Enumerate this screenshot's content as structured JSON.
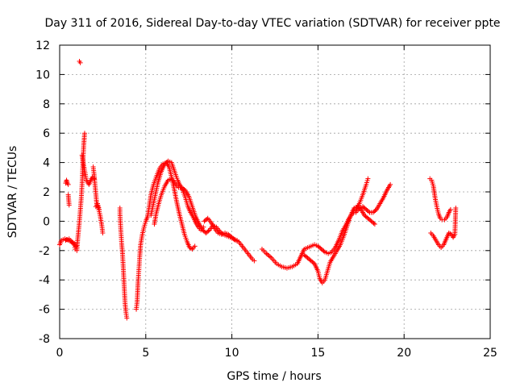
{
  "chart_data": {
    "type": "scatter",
    "title": "Day 311 of 2016, Sidereal Day-to-day VTEC variation (SDTVAR) for receiver ppte",
    "xlabel": "GPS time / hours",
    "ylabel": "SDTVAR / TECUs",
    "xlim": [
      0,
      25
    ],
    "ylim": [
      -8,
      12
    ],
    "xticks": [
      0,
      5,
      10,
      15,
      20,
      25
    ],
    "yticks": [
      -8,
      -6,
      -4,
      -2,
      0,
      2,
      4,
      6,
      8,
      10,
      12
    ],
    "grid": true,
    "marker": "+",
    "color": "#ff0000",
    "series": [
      {
        "name": "seg-a",
        "points": [
          [
            0,
            -1.6
          ],
          [
            0.1,
            -1.3
          ],
          [
            0.3,
            -1.2
          ],
          [
            0.5,
            -1.3
          ],
          [
            0.7,
            -1.4
          ],
          [
            0.85,
            -1.5
          ],
          [
            0.9,
            -1.9
          ],
          [
            1.0,
            -2.0
          ],
          [
            1.05,
            -1.2
          ],
          [
            1.15,
            0.0
          ],
          [
            1.25,
            1.5
          ],
          [
            1.3,
            2.5
          ],
          [
            1.35,
            4.0
          ],
          [
            1.4,
            5.2
          ],
          [
            1.45,
            6.0
          ]
        ]
      },
      {
        "name": "seg-a-low",
        "points": [
          [
            0.35,
            -1.3
          ],
          [
            0.55,
            -1.2
          ],
          [
            0.75,
            -1.5
          ],
          [
            0.95,
            -1.7
          ]
        ]
      },
      {
        "name": "seg-b",
        "points": [
          [
            0.35,
            2.6
          ],
          [
            0.4,
            2.8
          ],
          [
            0.45,
            2.6
          ],
          [
            0.5,
            2.5
          ]
        ]
      },
      {
        "name": "seg-b2",
        "points": [
          [
            0.5,
            1.8
          ],
          [
            0.55,
            1.1
          ]
        ]
      },
      {
        "name": "seg-c",
        "points": [
          [
            1.15,
            10.9
          ],
          [
            1.2,
            10.8
          ]
        ]
      },
      {
        "name": "seg-d",
        "points": [
          [
            1.3,
            4.5
          ],
          [
            1.4,
            3.8
          ],
          [
            1.55,
            2.8
          ],
          [
            1.7,
            2.5
          ],
          [
            1.8,
            2.8
          ],
          [
            1.9,
            3.0
          ],
          [
            2.0,
            2.9
          ]
        ]
      },
      {
        "name": "seg-e",
        "points": [
          [
            1.95,
            3.7
          ],
          [
            2.0,
            3.2
          ],
          [
            2.05,
            2.5
          ],
          [
            2.1,
            1.9
          ],
          [
            2.15,
            1.2
          ],
          [
            2.25,
            0.9
          ],
          [
            2.35,
            0.4
          ],
          [
            2.45,
            -0.3
          ],
          [
            2.5,
            -0.8
          ]
        ]
      },
      {
        "name": "seg-e2",
        "points": [
          [
            2.1,
            1.0
          ],
          [
            2.2,
            1.2
          ],
          [
            2.3,
            0.8
          ]
        ]
      },
      {
        "name": "seg-f",
        "points": [
          [
            3.5,
            0.9
          ],
          [
            3.5,
            0.5
          ],
          [
            3.55,
            -0.6
          ],
          [
            3.6,
            -1.5
          ],
          [
            3.65,
            -2.2
          ],
          [
            3.7,
            -3.3
          ],
          [
            3.75,
            -4.5
          ],
          [
            3.8,
            -5.6
          ],
          [
            3.85,
            -6.2
          ],
          [
            3.9,
            -6.6
          ]
        ]
      },
      {
        "name": "seg-g",
        "points": [
          [
            4.45,
            -6.0
          ],
          [
            4.5,
            -5.5
          ],
          [
            4.55,
            -4.2
          ],
          [
            4.6,
            -3.3
          ],
          [
            4.65,
            -2.4
          ],
          [
            4.7,
            -1.6
          ],
          [
            4.8,
            -0.9
          ],
          [
            4.9,
            -0.4
          ],
          [
            5.0,
            0.0
          ],
          [
            5.1,
            0.3
          ],
          [
            5.2,
            1.0
          ],
          [
            5.3,
            1.8
          ],
          [
            5.45,
            2.5
          ],
          [
            5.6,
            3.0
          ],
          [
            5.8,
            3.6
          ],
          [
            6.0,
            3.9
          ],
          [
            6.2,
            4.0
          ],
          [
            6.35,
            3.7
          ],
          [
            6.5,
            3.0
          ],
          [
            6.65,
            2.2
          ],
          [
            6.8,
            1.3
          ],
          [
            6.95,
            0.5
          ],
          [
            7.1,
            -0.2
          ],
          [
            7.25,
            -0.9
          ],
          [
            7.4,
            -1.4
          ],
          [
            7.55,
            -1.8
          ],
          [
            7.7,
            -1.9
          ],
          [
            7.85,
            -1.7
          ]
        ]
      },
      {
        "name": "seg-h",
        "points": [
          [
            5.3,
            0.4
          ],
          [
            5.5,
            1.5
          ],
          [
            5.7,
            2.6
          ],
          [
            5.9,
            3.4
          ],
          [
            6.1,
            3.9
          ],
          [
            6.3,
            4.1
          ],
          [
            6.5,
            4.0
          ],
          [
            6.7,
            3.3
          ],
          [
            6.85,
            2.8
          ],
          [
            7.0,
            2.4
          ],
          [
            7.15,
            2.1
          ],
          [
            7.3,
            1.6
          ],
          [
            7.45,
            1.0
          ],
          [
            7.6,
            0.6
          ],
          [
            7.75,
            0.3
          ],
          [
            7.9,
            -0.1
          ],
          [
            8.05,
            -0.4
          ],
          [
            8.2,
            -0.6
          ],
          [
            8.35,
            -0.4
          ]
        ]
      },
      {
        "name": "seg-i",
        "points": [
          [
            5.5,
            -0.2
          ],
          [
            5.6,
            0.5
          ],
          [
            5.75,
            1.2
          ],
          [
            5.9,
            1.8
          ],
          [
            6.1,
            2.4
          ],
          [
            6.3,
            2.8
          ],
          [
            6.5,
            2.9
          ],
          [
            6.7,
            2.6
          ],
          [
            6.9,
            2.3
          ],
          [
            7.1,
            2.3
          ],
          [
            7.3,
            2.1
          ],
          [
            7.5,
            1.7
          ],
          [
            7.7,
            1.0
          ],
          [
            7.9,
            0.3
          ],
          [
            8.1,
            -0.2
          ],
          [
            8.3,
            -0.6
          ],
          [
            8.5,
            -0.8
          ],
          [
            8.7,
            -0.6
          ],
          [
            8.9,
            -0.3
          ],
          [
            9.1,
            -0.4
          ],
          [
            9.3,
            -0.7
          ],
          [
            9.5,
            -0.9
          ],
          [
            9.7,
            -1.0
          ],
          [
            9.9,
            -1.1
          ],
          [
            10.1,
            -1.2
          ],
          [
            10.3,
            -1.3
          ]
        ]
      },
      {
        "name": "seg-j",
        "points": [
          [
            8.4,
            0.0
          ],
          [
            8.6,
            0.2
          ],
          [
            8.8,
            -0.1
          ],
          [
            9.0,
            -0.5
          ],
          [
            9.2,
            -0.8
          ],
          [
            9.4,
            -0.9
          ],
          [
            9.6,
            -0.8
          ],
          [
            9.8,
            -0.9
          ],
          [
            10.0,
            -1.1
          ],
          [
            10.2,
            -1.3
          ],
          [
            10.4,
            -1.4
          ],
          [
            10.6,
            -1.7
          ],
          [
            10.8,
            -2.0
          ],
          [
            11.0,
            -2.3
          ],
          [
            11.2,
            -2.6
          ],
          [
            11.3,
            -2.7
          ]
        ]
      },
      {
        "name": "seg-k",
        "points": [
          [
            11.75,
            -1.9
          ],
          [
            12.0,
            -2.2
          ],
          [
            12.3,
            -2.5
          ],
          [
            12.6,
            -2.9
          ],
          [
            12.9,
            -3.1
          ],
          [
            13.2,
            -3.2
          ],
          [
            13.5,
            -3.1
          ],
          [
            13.8,
            -2.9
          ],
          [
            14.0,
            -2.4
          ],
          [
            14.2,
            -1.9
          ],
          [
            14.4,
            -1.8
          ],
          [
            14.6,
            -1.7
          ],
          [
            14.8,
            -1.6
          ],
          [
            15.0,
            -1.7
          ],
          [
            15.2,
            -1.9
          ],
          [
            15.4,
            -2.1
          ],
          [
            15.6,
            -2.2
          ],
          [
            15.8,
            -2.1
          ],
          [
            16.0,
            -1.8
          ],
          [
            16.2,
            -1.3
          ],
          [
            16.4,
            -0.7
          ],
          [
            16.6,
            -0.3
          ],
          [
            16.8,
            0.2
          ],
          [
            17.0,
            0.5
          ],
          [
            17.2,
            0.8
          ],
          [
            17.4,
            1.2
          ],
          [
            17.6,
            1.8
          ],
          [
            17.8,
            2.5
          ],
          [
            17.9,
            2.9
          ]
        ]
      },
      {
        "name": "seg-l",
        "points": [
          [
            14.2,
            -2.3
          ],
          [
            14.4,
            -2.5
          ],
          [
            14.6,
            -2.7
          ],
          [
            14.8,
            -2.9
          ],
          [
            15.0,
            -3.4
          ],
          [
            15.1,
            -3.9
          ],
          [
            15.25,
            -4.2
          ],
          [
            15.4,
            -4.0
          ],
          [
            15.55,
            -3.4
          ],
          [
            15.7,
            -2.8
          ],
          [
            15.9,
            -2.4
          ],
          [
            16.1,
            -2.0
          ],
          [
            16.3,
            -1.6
          ],
          [
            16.5,
            -1.0
          ],
          [
            16.7,
            -0.3
          ],
          [
            16.9,
            0.4
          ],
          [
            17.1,
            0.9
          ],
          [
            17.3,
            1.0
          ],
          [
            17.5,
            0.8
          ],
          [
            17.7,
            0.4
          ],
          [
            17.9,
            0.2
          ],
          [
            18.1,
            0.0
          ],
          [
            18.3,
            -0.2
          ]
        ]
      },
      {
        "name": "seg-m",
        "points": [
          [
            17.2,
            0.6
          ],
          [
            17.4,
            0.9
          ],
          [
            17.6,
            1.0
          ],
          [
            17.8,
            0.8
          ],
          [
            18.0,
            0.6
          ],
          [
            18.2,
            0.6
          ],
          [
            18.4,
            0.8
          ],
          [
            18.6,
            1.2
          ],
          [
            18.8,
            1.6
          ],
          [
            19.0,
            2.1
          ],
          [
            19.2,
            2.5
          ]
        ]
      },
      {
        "name": "seg-n",
        "points": [
          [
            21.5,
            2.9
          ],
          [
            21.6,
            2.8
          ],
          [
            21.7,
            2.4
          ],
          [
            21.8,
            1.6
          ],
          [
            21.9,
            1.0
          ],
          [
            22.0,
            0.5
          ],
          [
            22.1,
            0.2
          ],
          [
            22.2,
            0.1
          ],
          [
            22.35,
            0.1
          ],
          [
            22.5,
            0.3
          ],
          [
            22.6,
            0.6
          ],
          [
            22.7,
            0.8
          ]
        ]
      },
      {
        "name": "seg-o",
        "points": [
          [
            21.55,
            -0.8
          ],
          [
            21.7,
            -1.0
          ],
          [
            21.85,
            -1.3
          ],
          [
            22.0,
            -1.6
          ],
          [
            22.15,
            -1.8
          ],
          [
            22.3,
            -1.6
          ],
          [
            22.45,
            -1.2
          ],
          [
            22.6,
            -0.8
          ],
          [
            22.75,
            -0.9
          ],
          [
            22.85,
            -1.1
          ],
          [
            22.95,
            -0.9
          ],
          [
            23.0,
            0.9
          ]
        ]
      }
    ]
  }
}
